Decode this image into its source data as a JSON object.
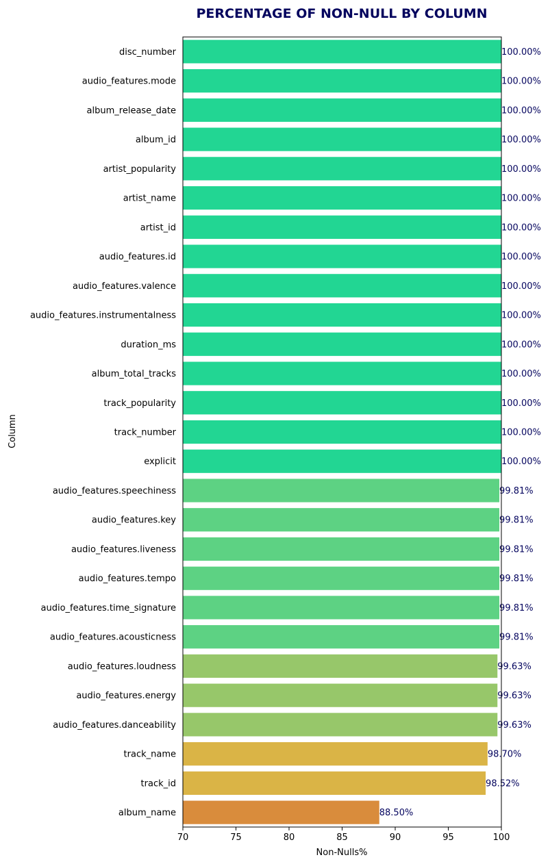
{
  "chart_data": {
    "type": "bar",
    "orientation": "horizontal",
    "title": "PERCENTAGE OF NON-NULL BY COLUMN",
    "xlabel": "Non-Nulls%",
    "ylabel": "Column",
    "xlim": [
      70,
      100
    ],
    "xticks": [
      70,
      75,
      80,
      85,
      90,
      95,
      100
    ],
    "grid": false,
    "title_color": "#04045e",
    "label_color": "#04045e",
    "categories": [
      "disc_number",
      "audio_features.mode",
      "album_release_date",
      "album_id",
      "artist_popularity",
      "artist_name",
      "artist_id",
      "audio_features.id",
      "audio_features.valence",
      "audio_features.instrumentalness",
      "duration_ms",
      "album_total_tracks",
      "track_popularity",
      "track_number",
      "explicit",
      "audio_features.speechiness",
      "audio_features.key",
      "audio_features.liveness",
      "audio_features.tempo",
      "audio_features.time_signature",
      "audio_features.acousticness",
      "audio_features.loudness",
      "audio_features.energy",
      "audio_features.danceability",
      "track_name",
      "track_id",
      "album_name"
    ],
    "values": [
      100,
      100,
      100,
      100,
      100,
      100,
      100,
      100,
      100,
      100,
      100,
      100,
      100,
      100,
      100,
      99.81,
      99.81,
      99.81,
      99.81,
      99.81,
      99.81,
      99.63,
      99.63,
      99.63,
      98.7,
      98.52,
      88.5
    ],
    "value_labels": [
      "100.00%",
      "100.00%",
      "100.00%",
      "100.00%",
      "100.00%",
      "100.00%",
      "100.00%",
      "100.00%",
      "100.00%",
      "100.00%",
      "100.00%",
      "100.00%",
      "100.00%",
      "100.00%",
      "100.00%",
      "99.81%",
      "99.81%",
      "99.81%",
      "99.81%",
      "99.81%",
      "99.81%",
      "99.63%",
      "99.63%",
      "99.63%",
      "98.70%",
      "98.52%",
      "88.50%"
    ],
    "colors": [
      "#22d693",
      "#22d693",
      "#22d693",
      "#22d693",
      "#22d693",
      "#22d693",
      "#22d693",
      "#22d693",
      "#22d693",
      "#22d693",
      "#22d693",
      "#22d693",
      "#22d693",
      "#22d693",
      "#22d693",
      "#5dd283",
      "#5dd283",
      "#5dd283",
      "#5dd283",
      "#5dd283",
      "#5dd283",
      "#97c76a",
      "#97c76a",
      "#97c76a",
      "#dab446",
      "#dab446",
      "#d98c3c"
    ]
  }
}
